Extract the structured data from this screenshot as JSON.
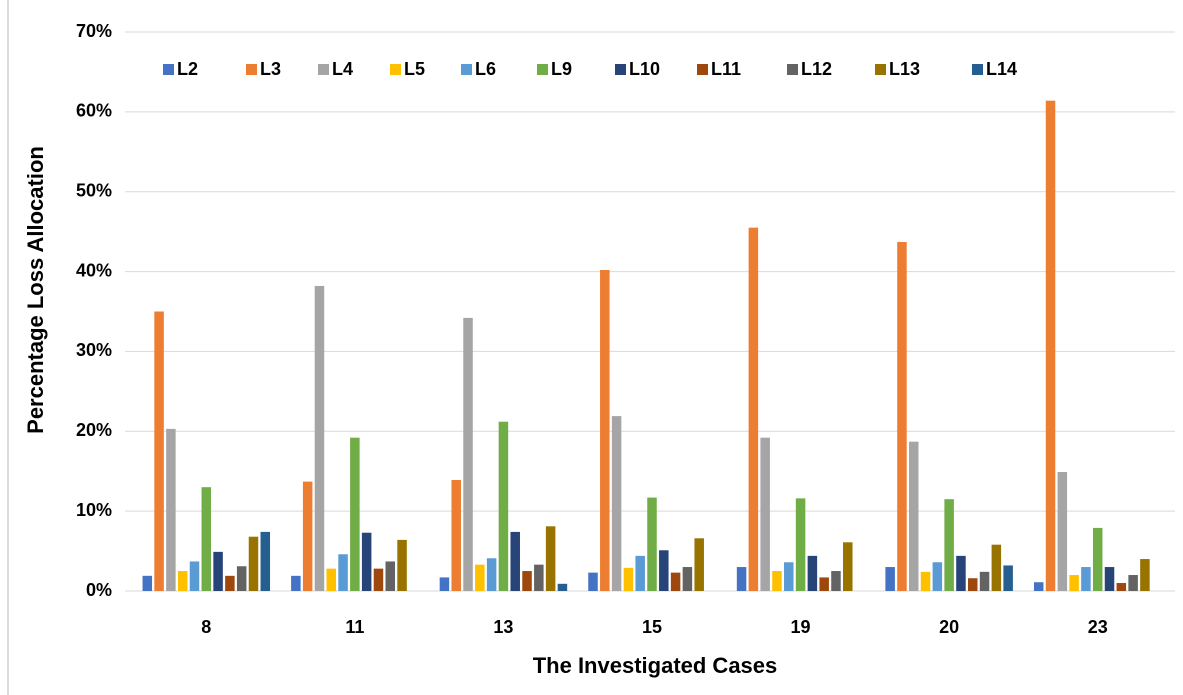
{
  "chart_data": {
    "type": "bar",
    "y_label": "Percentage Loss Allocation",
    "x_label": "The Investigated Cases",
    "categories": [
      "8",
      "11",
      "13",
      "15",
      "19",
      "20",
      "23"
    ],
    "series": [
      {
        "name": "L2",
        "color": "#4472c4",
        "values": [
          1.9,
          1.9,
          1.7,
          2.3,
          3.0,
          3.0,
          1.1
        ]
      },
      {
        "name": "L3",
        "color": "#ed7d31",
        "values": [
          35,
          13.7,
          13.9,
          40.2,
          45.5,
          43.7,
          61.4
        ]
      },
      {
        "name": "L4",
        "color": "#a5a5a5",
        "values": [
          20.3,
          38.2,
          34.2,
          21.9,
          19.2,
          18.7,
          14.9
        ]
      },
      {
        "name": "L5",
        "color": "#ffc000",
        "values": [
          2.5,
          2.8,
          3.3,
          2.9,
          2.5,
          2.4,
          2.0
        ]
      },
      {
        "name": "L6",
        "color": "#5b9bd5",
        "values": [
          3.7,
          4.6,
          4.1,
          4.4,
          3.6,
          3.6,
          3.0
        ]
      },
      {
        "name": "L9",
        "color": "#70ad47",
        "values": [
          13.0,
          19.2,
          21.2,
          11.7,
          11.6,
          11.5,
          7.9
        ]
      },
      {
        "name": "L10",
        "color": "#264478",
        "values": [
          4.9,
          7.3,
          7.4,
          5.1,
          4.4,
          4.4,
          3.0
        ]
      },
      {
        "name": "L11",
        "color": "#9e480e",
        "values": [
          1.9,
          2.8,
          2.5,
          2.3,
          1.7,
          1.6,
          1.0
        ]
      },
      {
        "name": "L12",
        "color": "#636363",
        "values": [
          3.1,
          3.7,
          3.3,
          3.0,
          2.5,
          2.4,
          2.0
        ]
      },
      {
        "name": "L13",
        "color": "#997300",
        "values": [
          6.8,
          6.4,
          8.1,
          6.6,
          6.1,
          5.8,
          4.0
        ]
      },
      {
        "name": "L14",
        "color": "#255e91",
        "values": [
          7.4,
          0,
          0.9,
          0,
          0,
          3.2,
          0
        ]
      }
    ],
    "ylim": [
      0,
      70
    ],
    "yticks": [
      {
        "value": 0,
        "label": "0%"
      },
      {
        "value": 10,
        "label": "10%"
      },
      {
        "value": 20,
        "label": "20%"
      },
      {
        "value": 30,
        "label": "30%"
      },
      {
        "value": 40,
        "label": "40%"
      },
      {
        "value": 50,
        "label": "50%"
      },
      {
        "value": 60,
        "label": "60%"
      },
      {
        "value": 70,
        "label": "70%"
      }
    ],
    "grid": true,
    "legend": "top"
  }
}
